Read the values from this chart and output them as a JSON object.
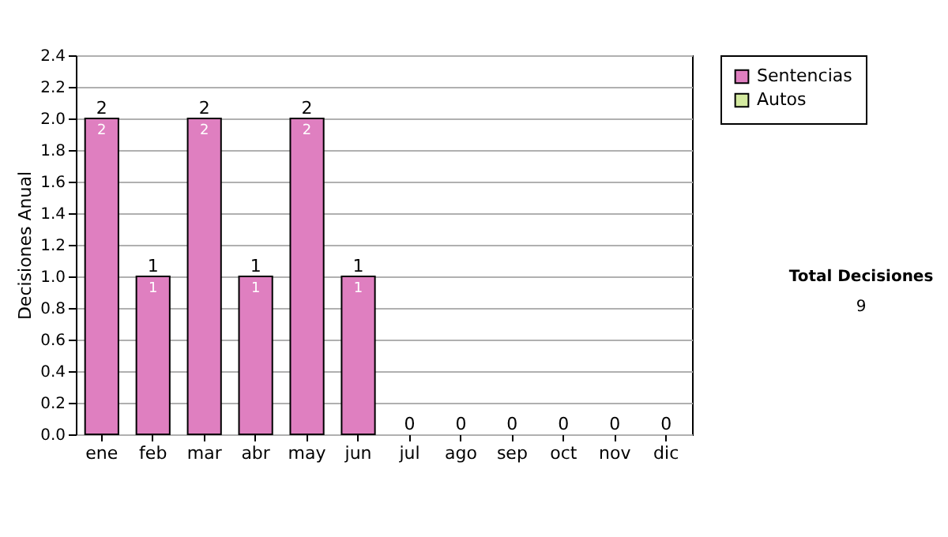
{
  "chart_data": {
    "type": "bar",
    "stacked": true,
    "ylabel": "Decisiones Anual",
    "categories": [
      "ene",
      "feb",
      "mar",
      "abr",
      "may",
      "jun",
      "jul",
      "ago",
      "sep",
      "oct",
      "nov",
      "dic"
    ],
    "series": [
      {
        "name": "Sentencias",
        "color": "#df7fc0",
        "values": [
          2,
          1,
          2,
          1,
          2,
          1,
          0,
          0,
          0,
          0,
          0,
          0
        ],
        "value_labels": [
          "2",
          "1",
          "2",
          "1",
          "2",
          "1",
          null,
          null,
          null,
          null,
          null,
          null
        ]
      },
      {
        "name": "Autos",
        "color": "#d4eaa0",
        "values": [
          0,
          0,
          0,
          0,
          0,
          0,
          0,
          0,
          0,
          0,
          0,
          0
        ]
      }
    ],
    "totals": [
      "2",
      "1",
      "2",
      "1",
      "2",
      "1",
      "0",
      "0",
      "0",
      "0",
      "0",
      "0"
    ],
    "ylim": [
      0,
      2.4
    ],
    "yticks": [
      {
        "value": 0,
        "label": "0.0"
      },
      {
        "value": 0.2,
        "label": "0.2"
      },
      {
        "value": 0.4,
        "label": "0.4"
      },
      {
        "value": 0.6,
        "label": "0.6"
      },
      {
        "value": 0.8,
        "label": "0.8"
      },
      {
        "value": 1,
        "label": "1.0"
      },
      {
        "value": 1.2,
        "label": "1.2"
      },
      {
        "value": 1.4,
        "label": "1.4"
      },
      {
        "value": 1.6,
        "label": "1.6"
      },
      {
        "value": 1.8,
        "label": "1.8"
      },
      {
        "value": 2,
        "label": "2.0"
      },
      {
        "value": 2.2,
        "label": "2.2"
      },
      {
        "value": 2.4,
        "label": "2.4"
      }
    ],
    "grid": "y",
    "legend": "right",
    "annotations": [
      "Total Decisiones",
      "9"
    ]
  }
}
